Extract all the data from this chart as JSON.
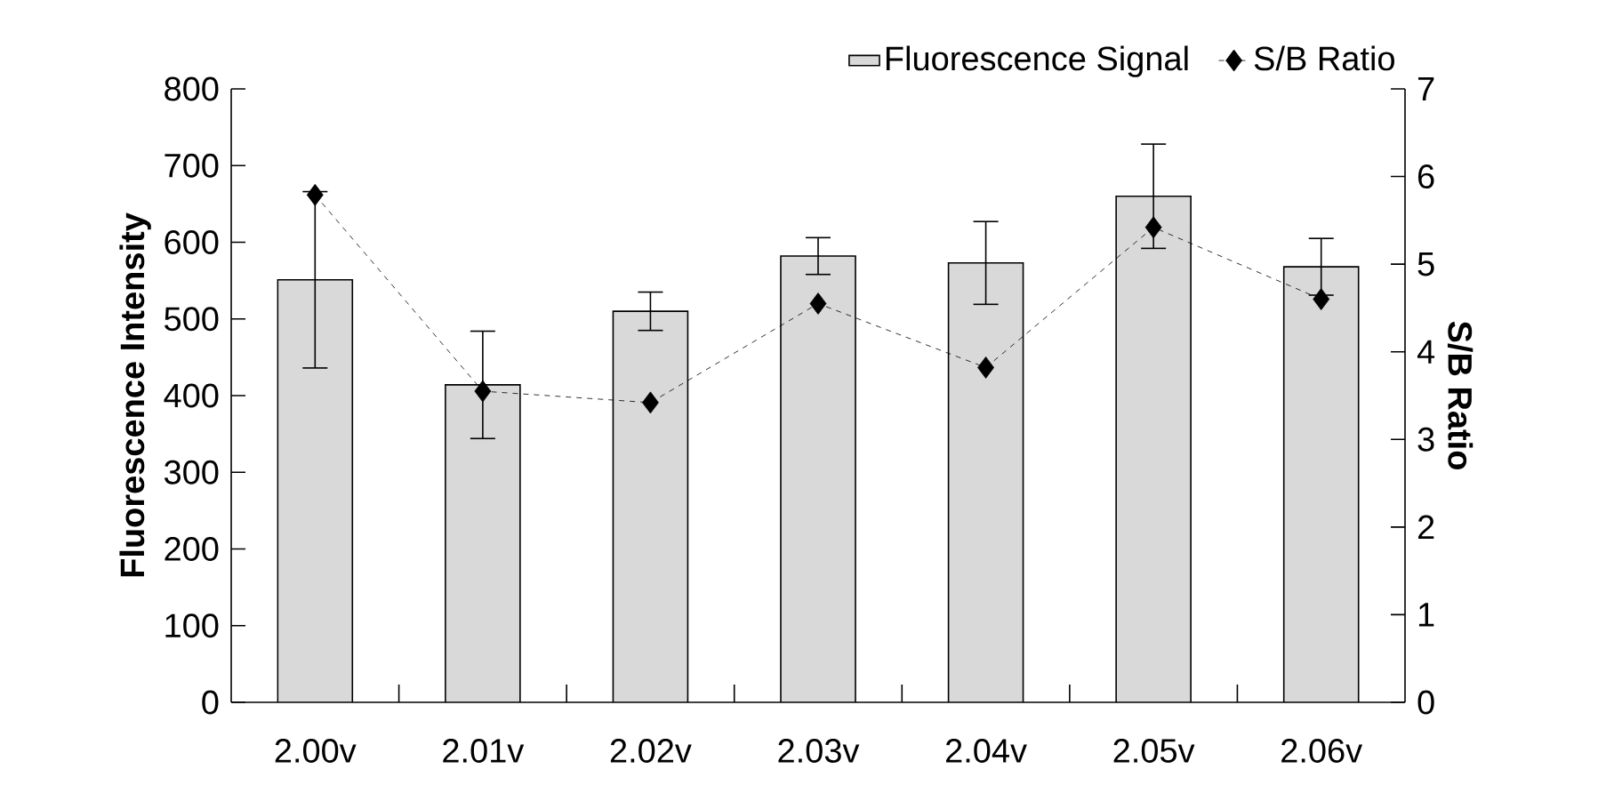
{
  "chart_data": {
    "type": "bar",
    "categories": [
      "2.00v",
      "2.01v",
      "2.02v",
      "2.03v",
      "2.04v",
      "2.05v",
      "2.06v"
    ],
    "ylabel": "Fluorescence Intensity",
    "y2label": "S/B Ratio",
    "ylim": [
      0,
      800
    ],
    "yticks": [
      0,
      100,
      200,
      300,
      400,
      500,
      600,
      700,
      800
    ],
    "y2lim": [
      0,
      7
    ],
    "y2ticks": [
      0,
      1,
      2,
      3,
      4,
      5,
      6,
      7
    ],
    "legend": "top right",
    "marker": "diamond",
    "line_style": "dashed",
    "series": [
      {
        "name": "Fluorescence Signal",
        "color": "#d9d9d9",
        "values": [
          551,
          414,
          510,
          582,
          573,
          660,
          568
        ],
        "errors": [
          115,
          70,
          25,
          24,
          54,
          68,
          37
        ]
      },
      {
        "name": "S/B Ratio",
        "type": "line",
        "axis": "y2",
        "color": "#000000",
        "values": [
          5.79,
          3.55,
          3.42,
          4.55,
          3.82,
          5.42,
          4.6
        ]
      }
    ]
  }
}
